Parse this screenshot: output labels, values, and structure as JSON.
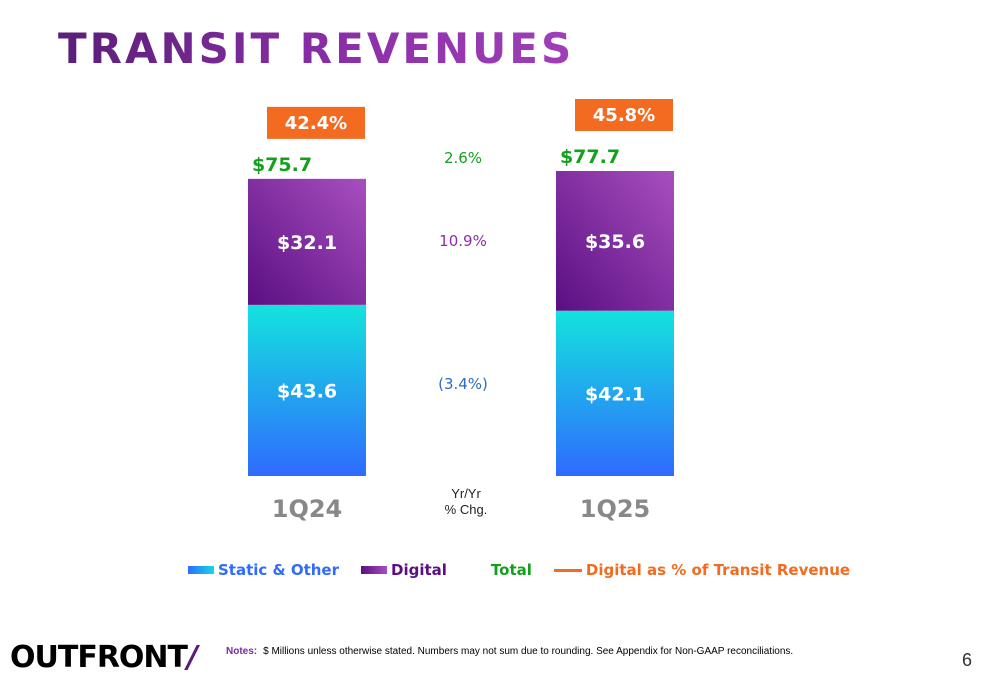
{
  "title": "TRANSIT REVENUES",
  "chart_data": {
    "type": "bar",
    "stacked": true,
    "categories": [
      "1Q24",
      "1Q25"
    ],
    "series": [
      {
        "name": "Static & Other",
        "values": [
          43.6,
          42.1
        ],
        "labels": [
          "$43.6",
          "$42.1"
        ],
        "color": "#2f6bff",
        "color2": "#13e3dd"
      },
      {
        "name": "Digital",
        "values": [
          32.1,
          35.6
        ],
        "labels": [
          "$32.1",
          "$35.6"
        ],
        "color": "#5a0f82",
        "color2": "#a84fbf"
      }
    ],
    "totals": {
      "name": "Total",
      "values": [
        75.7,
        77.7
      ],
      "labels": [
        "$75.7",
        "$77.7"
      ],
      "color": "#13a01f"
    },
    "digital_pct": {
      "name": "Digital as % of Transit Revenue",
      "values": [
        42.4,
        45.8
      ],
      "labels": [
        "42.4%",
        "45.8%"
      ],
      "color": "#f26b21"
    },
    "yoy": {
      "label_line1": "Yr/Yr",
      "label_line2": "% Chg.",
      "total": "2.6%",
      "digital": "10.9%",
      "static": "(3.4%)",
      "colors": {
        "total": "#13a01f",
        "digital": "#8b2fa8",
        "static": "#2b6cc4"
      }
    },
    "ylim": [
      0,
      80
    ]
  },
  "legend": {
    "static": "Static & Other",
    "digital": "Digital",
    "total": "Total",
    "pct": "Digital as % of Transit Revenue",
    "colors": {
      "static": "#2f6bff",
      "digital": "#5a0f82",
      "total": "#13a01f",
      "pct": "#f26b21"
    }
  },
  "footer": {
    "logo_text": "OUTFRONT",
    "logo_slash": "/",
    "notes_label": "Notes:",
    "notes_text": "$ Millions unless otherwise stated. Numbers may not sum due to rounding. See Appendix for Non-GAAP reconciliations.",
    "page_number": "6"
  }
}
